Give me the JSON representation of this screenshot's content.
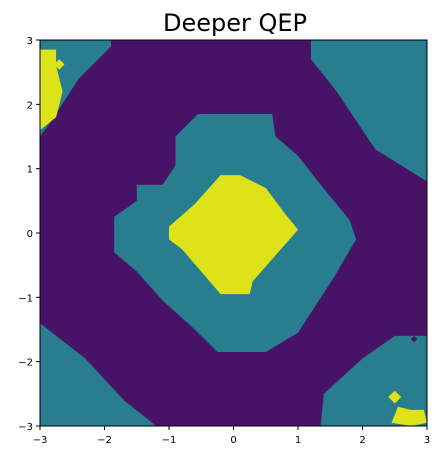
{
  "chart_data": {
    "type": "heatmap",
    "title": "Deeper QEP",
    "xlabel": "",
    "ylabel": "",
    "xlim": [
      -3,
      3
    ],
    "ylim": [
      -3,
      3
    ],
    "x_ticks": [
      -3,
      -2,
      -1,
      0,
      1,
      2,
      3
    ],
    "y_ticks": [
      -3,
      -2,
      -1,
      0,
      1,
      2,
      3
    ],
    "x_tick_labels": [
      "−3",
      "−2",
      "−1",
      "0",
      "1",
      "2",
      "3"
    ],
    "y_tick_labels": [
      "−3",
      "−2",
      "−1",
      "0",
      "1",
      "2",
      "3"
    ],
    "grid": false,
    "levels": [
      0,
      1,
      2
    ],
    "level_colors": [
      "#471367",
      "#287d8e",
      "#dde318"
    ],
    "regions": [
      {
        "level": 1,
        "polygon": [
          [
            -3,
            3
          ],
          [
            -1.9,
            3
          ],
          [
            -1.9,
            2.9
          ],
          [
            -2.4,
            2.4
          ],
          [
            -2.85,
            1.7
          ],
          [
            -3,
            1.5
          ]
        ]
      },
      {
        "level": 2,
        "polygon": [
          [
            -3,
            2.85
          ],
          [
            -2.75,
            2.85
          ],
          [
            -2.75,
            2.6
          ],
          [
            -2.65,
            2.2
          ],
          [
            -2.75,
            1.8
          ],
          [
            -3,
            1.6
          ]
        ]
      },
      {
        "level": 2,
        "polygon": [
          [
            -2.7,
            2.7
          ],
          [
            -2.62,
            2.62
          ],
          [
            -2.7,
            2.54
          ],
          [
            -2.78,
            2.62
          ]
        ]
      },
      {
        "level": 1,
        "polygon": [
          [
            -0.55,
            1.85
          ],
          [
            0.6,
            1.85
          ],
          [
            0.65,
            1.5
          ],
          [
            1,
            1.2
          ],
          [
            1.35,
            0.75
          ],
          [
            1.8,
            0.2
          ],
          [
            1.9,
            -0.1
          ],
          [
            1.55,
            -0.7
          ],
          [
            1,
            -1.55
          ],
          [
            0.5,
            -1.85
          ],
          [
            -0.25,
            -1.85
          ],
          [
            -0.6,
            -1.5
          ],
          [
            -1.1,
            -1.05
          ],
          [
            -1.5,
            -0.6
          ],
          [
            -1.85,
            -0.3
          ],
          [
            -1.85,
            0.25
          ],
          [
            -1.5,
            0.5
          ],
          [
            -1.5,
            0.75
          ],
          [
            -1.1,
            0.75
          ],
          [
            -0.9,
            1.05
          ],
          [
            -0.9,
            1.5
          ]
        ]
      },
      {
        "level": 2,
        "polygon": [
          [
            -0.2,
            0.9
          ],
          [
            0.1,
            0.9
          ],
          [
            0.5,
            0.7
          ],
          [
            0.8,
            0.3
          ],
          [
            1,
            0.05
          ],
          [
            0.65,
            -0.35
          ],
          [
            0.3,
            -0.75
          ],
          [
            0.25,
            -0.95
          ],
          [
            -0.2,
            -0.95
          ],
          [
            -0.5,
            -0.6
          ],
          [
            -0.8,
            -0.25
          ],
          [
            -1,
            -0.1
          ],
          [
            -1,
            0.1
          ],
          [
            -0.6,
            0.45
          ]
        ]
      },
      {
        "level": 1,
        "polygon": [
          [
            1.2,
            3
          ],
          [
            3,
            3
          ],
          [
            3,
            0.8
          ],
          [
            2.2,
            1.3
          ],
          [
            1.6,
            2.2
          ],
          [
            1.2,
            2.7
          ]
        ]
      },
      {
        "level": 1,
        "polygon": [
          [
            -3,
            -1.4
          ],
          [
            -2.3,
            -1.95
          ],
          [
            -1.7,
            -2.6
          ],
          [
            -1.2,
            -3
          ],
          [
            -3,
            -3
          ]
        ]
      },
      {
        "level": 1,
        "polygon": [
          [
            1.35,
            -3
          ],
          [
            3,
            -3
          ],
          [
            3,
            -1.6
          ],
          [
            2.5,
            -1.6
          ],
          [
            2,
            -1.95
          ],
          [
            1.4,
            -2.5
          ]
        ]
      },
      {
        "level": 2,
        "polygon": [
          [
            2.55,
            -2.7
          ],
          [
            2.75,
            -2.75
          ],
          [
            2.95,
            -2.75
          ],
          [
            3,
            -2.95
          ],
          [
            2.75,
            -3
          ],
          [
            2.45,
            -2.95
          ]
        ]
      },
      {
        "level": 2,
        "polygon": [
          [
            2.5,
            -2.45
          ],
          [
            2.6,
            -2.55
          ],
          [
            2.5,
            -2.65
          ],
          [
            2.4,
            -2.55
          ]
        ]
      },
      {
        "level": 0,
        "polygon": [
          [
            2.8,
            -1.6
          ],
          [
            2.85,
            -1.65
          ],
          [
            2.8,
            -1.7
          ],
          [
            2.75,
            -1.65
          ]
        ]
      }
    ]
  }
}
